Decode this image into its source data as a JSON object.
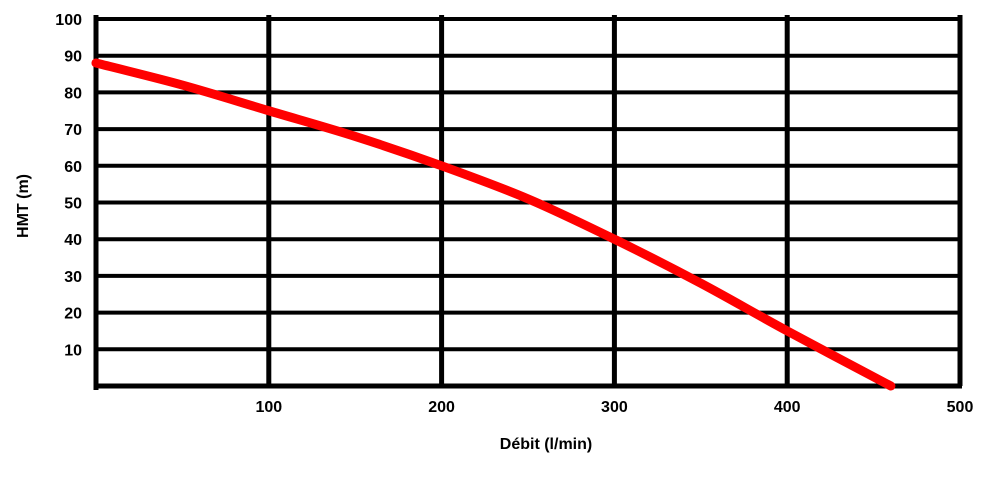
{
  "chart_data": {
    "type": "line",
    "title": "",
    "xlabel": "Débit (l/min)",
    "ylabel": "HMT (m)",
    "xlim": [
      0,
      500
    ],
    "ylim": [
      0,
      100
    ],
    "x_ticks": [
      100,
      200,
      300,
      400,
      500
    ],
    "y_ticks": [
      10,
      20,
      30,
      40,
      50,
      60,
      70,
      80,
      90,
      100
    ],
    "grid": true,
    "series": [
      {
        "color": "#ff0000",
        "x": [
          0,
          50,
          100,
          150,
          200,
          250,
          300,
          350,
          400,
          460
        ],
        "y": [
          88,
          82,
          75,
          68,
          60,
          51,
          40,
          28,
          15,
          0
        ]
      }
    ]
  }
}
